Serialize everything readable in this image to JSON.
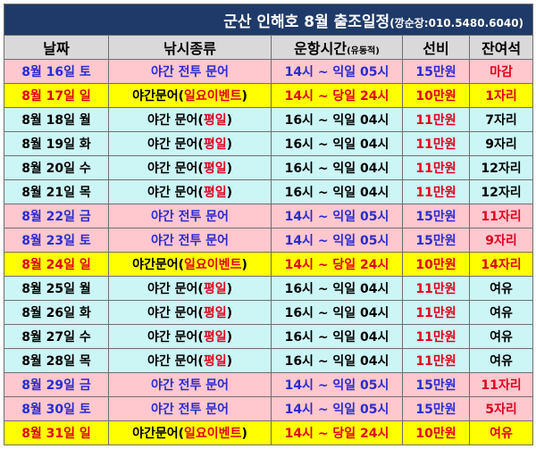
{
  "title": {
    "main": "군산 인해호 8월 출조일정",
    "contact": "(깡순장:010.5480.6040)"
  },
  "headers": {
    "date": "날짜",
    "type": "낚시종류",
    "time": "운항시간",
    "time_note": "(유동적)",
    "fee": "선비",
    "seats": "잔여석"
  },
  "rows": [
    {
      "date": "8월 16일 토",
      "type_base": "야간 전투 문어",
      "type_hl": "",
      "time": "14시 ~ 익일 05시",
      "fee": "15만원",
      "seats": "마감",
      "style": "pink"
    },
    {
      "date": "8월 17일 일",
      "type_base": "야간문어(",
      "type_hl": "일요이벤트",
      "type_end": ")",
      "time": "14시 ~ 당일 24시",
      "fee": "10만원",
      "seats": "1자리",
      "style": "yellow"
    },
    {
      "date": "8월 18일 월",
      "type_base": "야간 문어(",
      "type_hl": "평일",
      "type_end": ")",
      "time": "16시 ~ 익일 04시",
      "fee": "11만원",
      "seats": "7자리",
      "style": "cyan"
    },
    {
      "date": "8월 19일 화",
      "type_base": "야간 문어(",
      "type_hl": "평일",
      "type_end": ")",
      "time": "16시 ~ 익일 04시",
      "fee": "11만원",
      "seats": "9자리",
      "style": "cyan"
    },
    {
      "date": "8월 20일 수",
      "type_base": "야간 문어(",
      "type_hl": "평일",
      "type_end": ")",
      "time": "16시 ~ 익일 04시",
      "fee": "11만원",
      "seats": "12자리",
      "style": "cyan"
    },
    {
      "date": "8월 21일 목",
      "type_base": "야간 문어(",
      "type_hl": "평일",
      "type_end": ")",
      "time": "16시 ~ 익일 04시",
      "fee": "11만원",
      "seats": "12자리",
      "style": "cyan"
    },
    {
      "date": "8월 22일 금",
      "type_base": "야간 전투 문어",
      "type_hl": "",
      "time": "14시 ~ 익일 05시",
      "fee": "15만원",
      "seats": "11자리",
      "style": "pink"
    },
    {
      "date": "8월 23일 토",
      "type_base": "야간 전투 문어",
      "type_hl": "",
      "time": "14시 ~ 익일 05시",
      "fee": "15만원",
      "seats": "9자리",
      "style": "pink"
    },
    {
      "date": "8월 24일 일",
      "type_base": "야간문어(",
      "type_hl": "일요이벤트",
      "type_end": ")",
      "time": "14시 ~ 당일 24시",
      "fee": "10만원",
      "seats": "14자리",
      "style": "yellow"
    },
    {
      "date": "8월 25일 월",
      "type_base": "야간 문어(",
      "type_hl": "평일",
      "type_end": ")",
      "time": "16시 ~ 익일 04시",
      "fee": "11만원",
      "seats": "여유",
      "style": "cyan"
    },
    {
      "date": "8월 26일 화",
      "type_base": "야간 문어(",
      "type_hl": "평일",
      "type_end": ")",
      "time": "16시 ~ 익일 04시",
      "fee": "11만원",
      "seats": "여유",
      "style": "cyan"
    },
    {
      "date": "8월 27일 수",
      "type_base": "야간 문어(",
      "type_hl": "평일",
      "type_end": ")",
      "time": "16시 ~ 익일 04시",
      "fee": "11만원",
      "seats": "여유",
      "style": "cyan"
    },
    {
      "date": "8월 28일 목",
      "type_base": "야간 문어(",
      "type_hl": "평일",
      "type_end": ")",
      "time": "16시 ~ 익일 04시",
      "fee": "11만원",
      "seats": "여유",
      "style": "cyan"
    },
    {
      "date": "8월 29일 금",
      "type_base": "야간 전투 문어",
      "type_hl": "",
      "time": "14시 ~ 익일 05시",
      "fee": "15만원",
      "seats": "11자리",
      "style": "pink"
    },
    {
      "date": "8월 30일 토",
      "type_base": "야간 전투 문어",
      "type_hl": "",
      "time": "14시 ~ 익일 05시",
      "fee": "15만원",
      "seats": "5자리",
      "style": "pink"
    },
    {
      "date": "8월 31일 일",
      "type_base": "야간문어(",
      "type_hl": "일요이벤트",
      "type_end": ")",
      "time": "14시 ~ 당일 24시",
      "fee": "10만원",
      "seats": "여유",
      "style": "yellow"
    }
  ]
}
